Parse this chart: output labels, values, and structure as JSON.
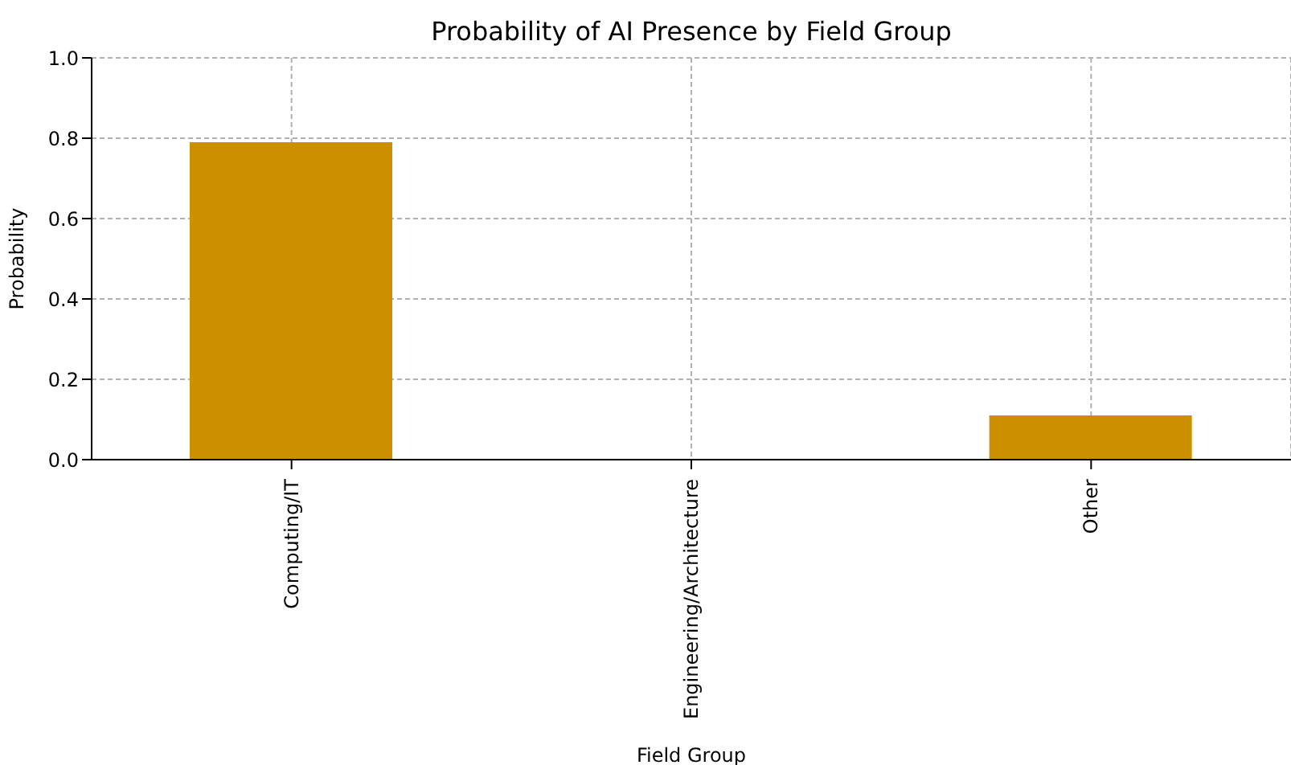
{
  "chart_data": {
    "type": "bar",
    "title": "Probability of AI Presence by Field Group",
    "xlabel": "Field Group",
    "ylabel": "Probability",
    "categories": [
      "Computing/IT",
      "Engineering/Architecture",
      "Other"
    ],
    "values": [
      0.79,
      0,
      0.11
    ],
    "color": "#cc8f00",
    "ylim": [
      0,
      1
    ],
    "yticks": [
      {
        "value": 0,
        "label": "0.0"
      },
      {
        "value": 0.2,
        "label": "0.2"
      },
      {
        "value": 0.4,
        "label": "0.4"
      },
      {
        "value": 0.6,
        "label": "0.6"
      },
      {
        "value": 0.8,
        "label": "0.8"
      },
      {
        "value": 1,
        "label": "1.0"
      }
    ],
    "grid": true
  }
}
